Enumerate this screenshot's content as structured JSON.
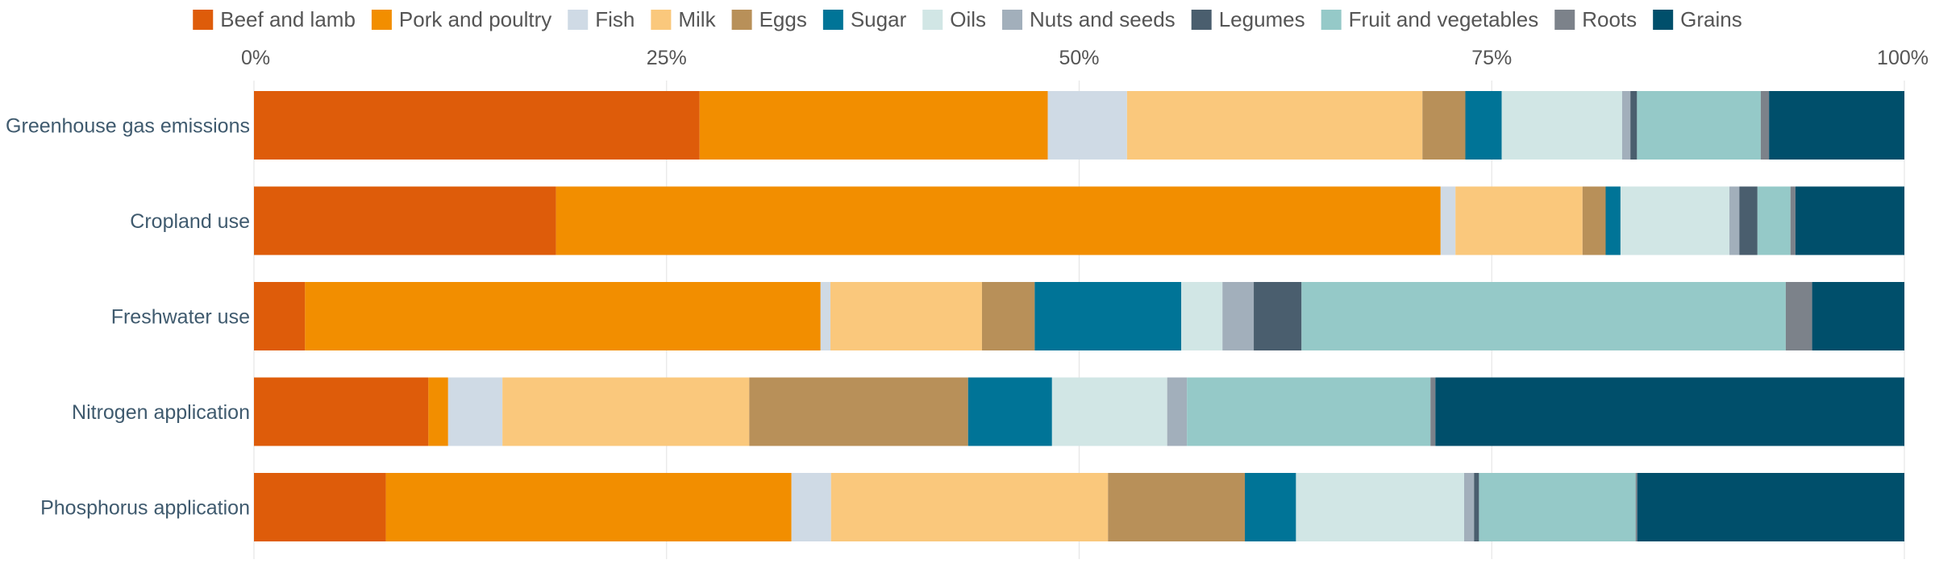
{
  "chart_data": {
    "type": "bar",
    "orientation": "horizontal",
    "stacked": true,
    "normalized": true,
    "legend_position": "top",
    "x_axis_position": "top",
    "xlim": [
      0,
      100
    ],
    "x_ticks": [
      {
        "value": 0,
        "label": "0%"
      },
      {
        "value": 25,
        "label": "25%"
      },
      {
        "value": 50,
        "label": "50%"
      },
      {
        "value": 75,
        "label": "75%"
      },
      {
        "value": 100,
        "label": "100%"
      }
    ],
    "grid": true,
    "categories": [
      "Greenhouse gas emissions",
      "Cropland use",
      "Freshwater use",
      "Nitrogen application",
      "Phosphorus application"
    ],
    "series": [
      {
        "name": "Beef and lamb",
        "color": "#DE5C0A",
        "values": [
          27.0,
          18.3,
          3.1,
          10.6,
          8.0
        ]
      },
      {
        "name": "Pork and poultry",
        "color": "#F28E00",
        "values": [
          21.1,
          53.6,
          31.3,
          1.2,
          24.6
        ]
      },
      {
        "name": "Fish",
        "color": "#CFDAE5",
        "values": [
          4.8,
          0.9,
          0.6,
          3.3,
          2.4
        ]
      },
      {
        "name": "Milk",
        "color": "#FAC87C",
        "values": [
          17.9,
          7.7,
          9.2,
          15.0,
          16.8
        ]
      },
      {
        "name": "Eggs",
        "color": "#B89059",
        "values": [
          2.6,
          1.4,
          3.2,
          13.3,
          8.3
        ]
      },
      {
        "name": "Sugar",
        "color": "#007497",
        "values": [
          2.2,
          0.9,
          8.9,
          5.1,
          3.1
        ]
      },
      {
        "name": "Oils",
        "color": "#D1E6E5",
        "values": [
          7.3,
          6.6,
          2.5,
          7.0,
          10.2
        ]
      },
      {
        "name": "Nuts and seeds",
        "color": "#A2AFBB",
        "values": [
          0.5,
          0.6,
          1.9,
          1.2,
          0.6
        ]
      },
      {
        "name": "Legumes",
        "color": "#4A5E6E",
        "values": [
          0.4,
          1.1,
          2.9,
          0.0,
          0.3
        ]
      },
      {
        "name": "Fruit and vegetables",
        "color": "#95C9C8",
        "values": [
          7.5,
          2.0,
          29.4,
          14.8,
          9.5
        ]
      },
      {
        "name": "Roots",
        "color": "#7C828A",
        "values": [
          0.5,
          0.3,
          1.6,
          0.3,
          0.1
        ]
      },
      {
        "name": "Grains",
        "color": "#004F6B",
        "values": [
          8.2,
          6.6,
          5.6,
          28.5,
          16.2
        ]
      }
    ]
  }
}
